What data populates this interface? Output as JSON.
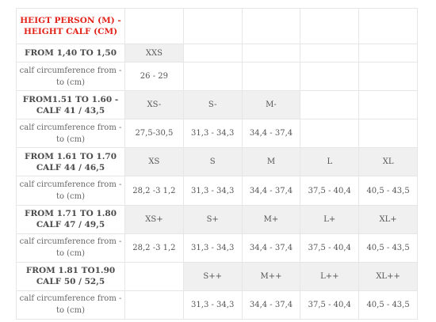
{
  "header": {
    "line1": "HEIGT PERSON (M) -",
    "line2": "HEIGHT CALF (CM)"
  },
  "rows": [
    {
      "head": "FROM 1,40 TO 1,50",
      "sizes": [
        "XXS",
        "",
        "",
        "",
        ""
      ],
      "gray": [
        true,
        false,
        false,
        false,
        false
      ],
      "label": "calf circumference from - to (cm)",
      "values": [
        "26 - 29",
        "",
        "",
        "",
        ""
      ]
    },
    {
      "head": "FROM1.51 TO 1.60 - CALF 41 / 43,5",
      "sizes": [
        "XS-",
        "S-",
        "M-",
        "",
        ""
      ],
      "gray": [
        true,
        true,
        true,
        false,
        false
      ],
      "label": "calf circumference from - to (cm)",
      "values": [
        "27,5-30,5",
        "31,3 - 34,3",
        "34,4 - 37,4",
        "",
        ""
      ]
    },
    {
      "head": "FROM 1.61 TO 1.70 CALF 44 / 46,5",
      "sizes": [
        "XS",
        "S",
        "M",
        "L",
        "XL"
      ],
      "gray": [
        true,
        true,
        true,
        true,
        true
      ],
      "label": "calf circumference from - to (cm)",
      "values": [
        "28,2 -3 1,2",
        "31,3 - 34,3",
        "34,4 - 37,4",
        "37,5 - 40,4",
        "40,5 - 43,5"
      ]
    },
    {
      "head": "FROM 1.71 TO 1.80 CALF 47 / 49,5",
      "sizes": [
        "XS+",
        "S+",
        "M+",
        "L+",
        "XL+"
      ],
      "gray": [
        true,
        true,
        true,
        true,
        true
      ],
      "label": "calf circumference from - to (cm)",
      "values": [
        "28,2 -3 1,2",
        "31,3 - 34,3",
        "34,4 - 37,4",
        "37,5 - 40,4",
        "40,5 - 43,5"
      ]
    },
    {
      "head": "FROM 1.81 TO1.90 CALF 50 / 52,5",
      "sizes": [
        "",
        "S++",
        "M++",
        "L++",
        "XL++"
      ],
      "gray": [
        false,
        true,
        true,
        true,
        true
      ],
      "label": "calf circumference from - to (cm)",
      "values": [
        "",
        "31,3 - 34,3",
        "34,4 - 37,4",
        "37,5 - 40,4",
        "40,5 - 43,5"
      ]
    }
  ]
}
